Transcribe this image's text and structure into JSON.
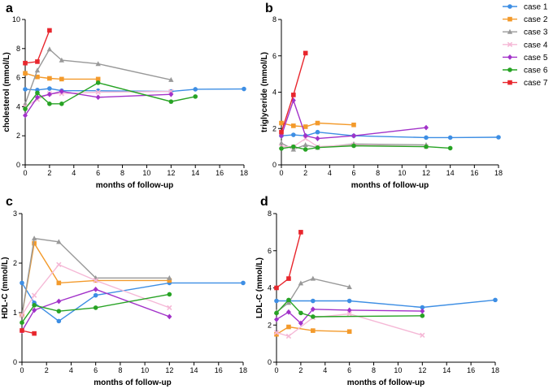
{
  "colors": {
    "case 1": "#3d8ee4",
    "case 2": "#f39a2b",
    "case 3": "#999999",
    "case 4": "#f5b8d6",
    "case 5": "#a232c9",
    "case 6": "#27a324",
    "case 7": "#e8262d"
  },
  "markers": {
    "case 1": "circle",
    "case 2": "square",
    "case 3": "triangle",
    "case 4": "x",
    "case 5": "diamond",
    "case 6": "circle",
    "case 7": "square"
  },
  "legend": {
    "entries": [
      "case 1",
      "case 2",
      "case 3",
      "case 4",
      "case 5",
      "case 6",
      "case 7"
    ],
    "position": "top-right"
  },
  "chart_data": [
    {
      "panel": "a",
      "type": "line",
      "xlabel": "months of follow-up",
      "ylabel": "cholesterol (mmol/L)",
      "xlim": [
        0,
        18
      ],
      "ylim": [
        0,
        10
      ],
      "xticks": [
        0,
        2,
        4,
        6,
        8,
        10,
        12,
        14,
        16,
        18
      ],
      "yticks": [
        0,
        2,
        4,
        6,
        8,
        10
      ],
      "series": [
        {
          "name": "case 1",
          "x": [
            0,
            1,
            2,
            3,
            6,
            12,
            14,
            18
          ],
          "y": [
            5.2,
            5.15,
            5.25,
            5.1,
            5.1,
            5.05,
            5.2,
            5.22
          ]
        },
        {
          "name": "case 2",
          "x": [
            0,
            1,
            2,
            3,
            6
          ],
          "y": [
            6.3,
            6.05,
            5.95,
            5.9,
            5.9
          ]
        },
        {
          "name": "case 3",
          "x": [
            0,
            1,
            2,
            3,
            6,
            12
          ],
          "y": [
            4.2,
            6.5,
            7.95,
            7.2,
            6.95,
            5.85
          ]
        },
        {
          "name": "case 4",
          "x": [
            0,
            1,
            2,
            3,
            6,
            12
          ],
          "y": [
            4.0,
            4.5,
            4.9,
            4.9,
            5.0,
            5.05
          ]
        },
        {
          "name": "case 5",
          "x": [
            0,
            1,
            2,
            3,
            6,
            12
          ],
          "y": [
            3.4,
            4.65,
            4.85,
            5.05,
            4.65,
            4.85
          ]
        },
        {
          "name": "case 6",
          "x": [
            0,
            1,
            2,
            3,
            6,
            12,
            14
          ],
          "y": [
            3.85,
            4.95,
            4.2,
            4.2,
            5.65,
            4.35,
            4.7
          ]
        },
        {
          "name": "case 7",
          "x": [
            0,
            1,
            2
          ],
          "y": [
            7.0,
            7.1,
            9.25
          ]
        }
      ]
    },
    {
      "panel": "b",
      "type": "line",
      "xlabel": "months of follow-up",
      "ylabel": "triglyceride (mmol/L)",
      "xlim": [
        0,
        18
      ],
      "ylim": [
        0,
        8
      ],
      "xticks": [
        0,
        2,
        4,
        6,
        8,
        10,
        12,
        14,
        16,
        18
      ],
      "yticks": [
        0,
        2,
        4,
        6,
        8
      ],
      "series": [
        {
          "name": "case 1",
          "x": [
            0,
            1,
            2,
            3,
            6,
            12,
            14,
            18
          ],
          "y": [
            1.6,
            1.65,
            1.6,
            1.8,
            1.6,
            1.5,
            1.5,
            1.52
          ]
        },
        {
          "name": "case 2",
          "x": [
            0,
            1,
            2,
            3,
            6
          ],
          "y": [
            2.3,
            2.15,
            2.1,
            2.3,
            2.2
          ]
        },
        {
          "name": "case 3",
          "x": [
            0,
            1,
            2,
            3,
            6,
            12
          ],
          "y": [
            1.2,
            0.85,
            1.1,
            0.95,
            1.15,
            1.1
          ]
        },
        {
          "name": "case 4",
          "x": [
            0,
            1,
            2,
            3,
            6,
            12
          ],
          "y": [
            1.0,
            1.0,
            1.45,
            1.0,
            1.1,
            1.0
          ]
        },
        {
          "name": "case 5",
          "x": [
            0,
            1,
            2,
            3,
            6,
            12
          ],
          "y": [
            1.6,
            3.55,
            1.6,
            1.45,
            1.6,
            2.05
          ]
        },
        {
          "name": "case 6",
          "x": [
            0,
            1,
            2,
            3,
            6,
            12,
            14
          ],
          "y": [
            0.9,
            1.0,
            0.85,
            0.95,
            1.05,
            1.0,
            0.92
          ]
        },
        {
          "name": "case 7",
          "x": [
            0,
            1,
            2
          ],
          "y": [
            1.8,
            3.85,
            6.15
          ]
        }
      ]
    },
    {
      "panel": "c",
      "type": "line",
      "xlabel": "months of follow-up",
      "ylabel": "HDL-C (mmol/L)",
      "xlim": [
        0,
        18
      ],
      "ylim": [
        0,
        3
      ],
      "xticks": [
        0,
        2,
        4,
        6,
        8,
        10,
        12,
        14,
        16,
        18
      ],
      "yticks": [
        0,
        1,
        2,
        3
      ],
      "series": [
        {
          "name": "case 1",
          "x": [
            0,
            1,
            3,
            6,
            12,
            18
          ],
          "y": [
            1.6,
            1.2,
            0.83,
            1.35,
            1.6,
            1.6
          ]
        },
        {
          "name": "case 2",
          "x": [
            0,
            1,
            3,
            6,
            12
          ],
          "y": [
            0.95,
            2.4,
            1.6,
            1.65,
            1.65
          ]
        },
        {
          "name": "case 3",
          "x": [
            0,
            1,
            3,
            6,
            12
          ],
          "y": [
            0.95,
            2.5,
            2.43,
            1.7,
            1.7
          ]
        },
        {
          "name": "case 4",
          "x": [
            0,
            1,
            3,
            6,
            12
          ],
          "y": [
            0.95,
            1.35,
            1.97,
            1.65,
            1.1
          ]
        },
        {
          "name": "case 5",
          "x": [
            0,
            1,
            3,
            6,
            12
          ],
          "y": [
            0.63,
            1.05,
            1.23,
            1.47,
            0.92
          ]
        },
        {
          "name": "case 6",
          "x": [
            0,
            1,
            3,
            6,
            12
          ],
          "y": [
            0.8,
            1.15,
            1.03,
            1.1,
            1.37
          ]
        },
        {
          "name": "case 7",
          "x": [
            0,
            1
          ],
          "y": [
            0.64,
            0.58
          ]
        }
      ]
    },
    {
      "panel": "d",
      "type": "line",
      "xlabel": "months of follow-up",
      "ylabel": "LDL-C (mmol/L)",
      "xlim": [
        0,
        18
      ],
      "ylim": [
        0,
        8
      ],
      "xticks": [
        0,
        2,
        4,
        6,
        8,
        10,
        12,
        14,
        16,
        18
      ],
      "yticks": [
        0,
        2,
        4,
        6,
        8
      ],
      "series": [
        {
          "name": "case 1",
          "x": [
            0,
            1,
            3,
            6,
            12,
            18
          ],
          "y": [
            3.3,
            3.3,
            3.3,
            3.3,
            2.95,
            3.35
          ]
        },
        {
          "name": "case 2",
          "x": [
            0,
            1,
            3,
            6
          ],
          "y": [
            1.5,
            1.9,
            1.7,
            1.65
          ]
        },
        {
          "name": "case 3",
          "x": [
            0,
            1,
            2,
            3,
            6
          ],
          "y": [
            2.7,
            3.2,
            4.25,
            4.5,
            4.05
          ]
        },
        {
          "name": "case 4",
          "x": [
            0,
            1,
            3,
            6,
            12
          ],
          "y": [
            1.6,
            1.4,
            2.4,
            2.6,
            1.45
          ]
        },
        {
          "name": "case 5",
          "x": [
            0,
            1,
            2,
            3,
            6,
            12
          ],
          "y": [
            2.3,
            2.7,
            2.1,
            2.85,
            2.8,
            2.75
          ]
        },
        {
          "name": "case 6",
          "x": [
            0,
            1,
            2,
            3,
            12
          ],
          "y": [
            2.65,
            3.35,
            2.65,
            2.45,
            2.5
          ]
        },
        {
          "name": "case 7",
          "x": [
            0,
            1,
            2
          ],
          "y": [
            4.0,
            4.5,
            7.0
          ]
        }
      ]
    }
  ]
}
